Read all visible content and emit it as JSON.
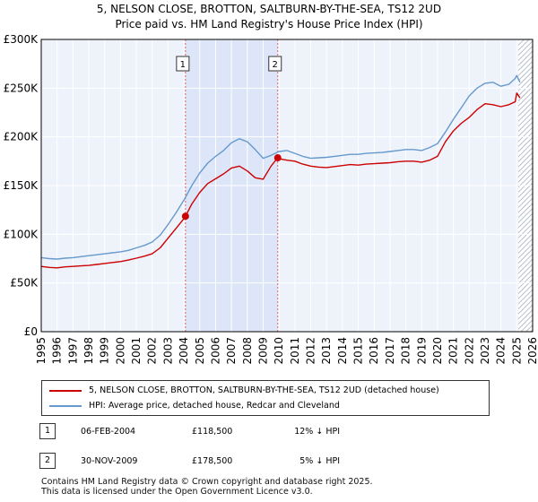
{
  "chart_data": {
    "type": "line",
    "title": "5, NELSON CLOSE, BROTTON, SALTBURN-BY-THE-SEA, TS12 2UD",
    "subtitle": "Price paid vs. HM Land Registry's House Price Index (HPI)",
    "xlabel": "",
    "ylabel": "",
    "xlim": [
      1995,
      2026
    ],
    "ylim": [
      0,
      300000
    ],
    "y_ticks": [
      {
        "value": 0,
        "label": "£0"
      },
      {
        "value": 50000,
        "label": "£50K"
      },
      {
        "value": 100000,
        "label": "£100K"
      },
      {
        "value": 150000,
        "label": "£150K"
      },
      {
        "value": 200000,
        "label": "£200K"
      },
      {
        "value": 250000,
        "label": "£250K"
      },
      {
        "value": 300000,
        "label": "£300K"
      }
    ],
    "x_ticks": [
      "1995",
      "1996",
      "1997",
      "1998",
      "1999",
      "2000",
      "2001",
      "2002",
      "2003",
      "2004",
      "2005",
      "2006",
      "2007",
      "2008",
      "2009",
      "2010",
      "2011",
      "2012",
      "2013",
      "2014",
      "2015",
      "2016",
      "2017",
      "2018",
      "2019",
      "2020",
      "2021",
      "2022",
      "2023",
      "2024",
      "2025",
      "2026"
    ],
    "grid": true,
    "shaded_span": {
      "from": 2004.1,
      "to": 2009.92,
      "color": "#dde6f8"
    },
    "forecast_start": 2025.1,
    "series": [
      {
        "name": "5, NELSON CLOSE, BROTTON, SALTBURN-BY-THE-SEA, TS12 2UD (detached house)",
        "color": "#cc0000",
        "x": [
          1995,
          1995.5,
          1996,
          1996.5,
          1997,
          1997.5,
          1998,
          1998.5,
          1999,
          1999.5,
          2000,
          2000.5,
          2001,
          2001.5,
          2002,
          2002.5,
          2003,
          2003.5,
          2004,
          2004.1,
          2004.5,
          2005,
          2005.5,
          2006,
          2006.5,
          2007,
          2007.5,
          2008,
          2008.5,
          2009,
          2009.5,
          2009.92,
          2010,
          2010.5,
          2011,
          2011.5,
          2012,
          2012.5,
          2013,
          2013.5,
          2014,
          2014.5,
          2015,
          2015.5,
          2016,
          2016.5,
          2017,
          2017.5,
          2018,
          2018.5,
          2019,
          2019.5,
          2020,
          2020.5,
          2021,
          2021.5,
          2022,
          2022.5,
          2023,
          2023.5,
          2024,
          2024.5,
          2024.9,
          2025,
          2025.2
        ],
        "y": [
          67000,
          66000,
          65500,
          66500,
          67000,
          67500,
          68000,
          69000,
          70000,
          71000,
          72000,
          73500,
          75500,
          77500,
          80000,
          86000,
          96000,
          106000,
          116000,
          118500,
          131000,
          143000,
          152000,
          157000,
          162000,
          168000,
          170000,
          165000,
          158000,
          156500,
          170000,
          178500,
          177500,
          176000,
          175000,
          172000,
          170000,
          169000,
          168500,
          169500,
          170500,
          171500,
          171000,
          172000,
          172500,
          173000,
          173500,
          174500,
          175000,
          175000,
          174000,
          176000,
          180000,
          195000,
          206000,
          214000,
          220000,
          228000,
          234000,
          233000,
          231000,
          233000,
          236000,
          245000,
          240000
        ]
      },
      {
        "name": "HPI: Average price, detached house, Redcar and Cleveland",
        "color": "#6699cc",
        "x": [
          1995,
          1995.5,
          1996,
          1996.5,
          1997,
          1997.5,
          1998,
          1998.5,
          1999,
          1999.5,
          2000,
          2000.5,
          2001,
          2001.5,
          2002,
          2002.5,
          2003,
          2003.5,
          2004,
          2004.5,
          2005,
          2005.5,
          2006,
          2006.5,
          2007,
          2007.5,
          2008,
          2008.5,
          2009,
          2009.5,
          2010,
          2010.5,
          2011,
          2011.5,
          2012,
          2012.5,
          2013,
          2013.5,
          2014,
          2014.5,
          2015,
          2015.5,
          2016,
          2016.5,
          2017,
          2017.5,
          2018,
          2018.5,
          2019,
          2019.5,
          2020,
          2020.5,
          2021,
          2021.5,
          2022,
          2022.5,
          2023,
          2023.5,
          2024,
          2024.5,
          2024.9,
          2025,
          2025.2
        ],
        "y": [
          76000,
          75000,
          74500,
          75500,
          76000,
          77000,
          78000,
          79000,
          80000,
          81000,
          82000,
          83500,
          86000,
          88500,
          92000,
          99000,
          110000,
          122000,
          135000,
          150000,
          163000,
          173000,
          180000,
          186000,
          194000,
          198000,
          195000,
          187000,
          178000,
          181000,
          185000,
          186000,
          183000,
          180000,
          178000,
          178500,
          179000,
          180000,
          181000,
          182000,
          182000,
          183000,
          183500,
          184000,
          185000,
          186000,
          187000,
          187000,
          186000,
          189000,
          193000,
          205000,
          218000,
          230000,
          242000,
          250000,
          255000,
          256000,
          252000,
          254000,
          260000,
          263000,
          256000
        ]
      }
    ],
    "sales": [
      {
        "label": "1",
        "x": 2004.1,
        "y": 118500
      },
      {
        "label": "2",
        "x": 2009.92,
        "y": 178500
      }
    ]
  },
  "legend": {
    "items": [
      {
        "label": "5, NELSON CLOSE, BROTTON, SALTBURN-BY-THE-SEA, TS12 2UD (detached house)",
        "color": "#cc0000"
      },
      {
        "label": "HPI: Average price, detached house, Redcar and Cleveland",
        "color": "#6699cc"
      }
    ]
  },
  "sales_table": [
    {
      "num": "1",
      "date": "06-FEB-2004",
      "price": "£118,500",
      "hpi": "12% ↓ HPI"
    },
    {
      "num": "2",
      "date": "30-NOV-2009",
      "price": "£178,500",
      "hpi": "5% ↓ HPI"
    }
  ],
  "footer": {
    "line1": "Contains HM Land Registry data © Crown copyright and database right 2025.",
    "line2": "This data is licensed under the Open Government Licence v3.0."
  }
}
